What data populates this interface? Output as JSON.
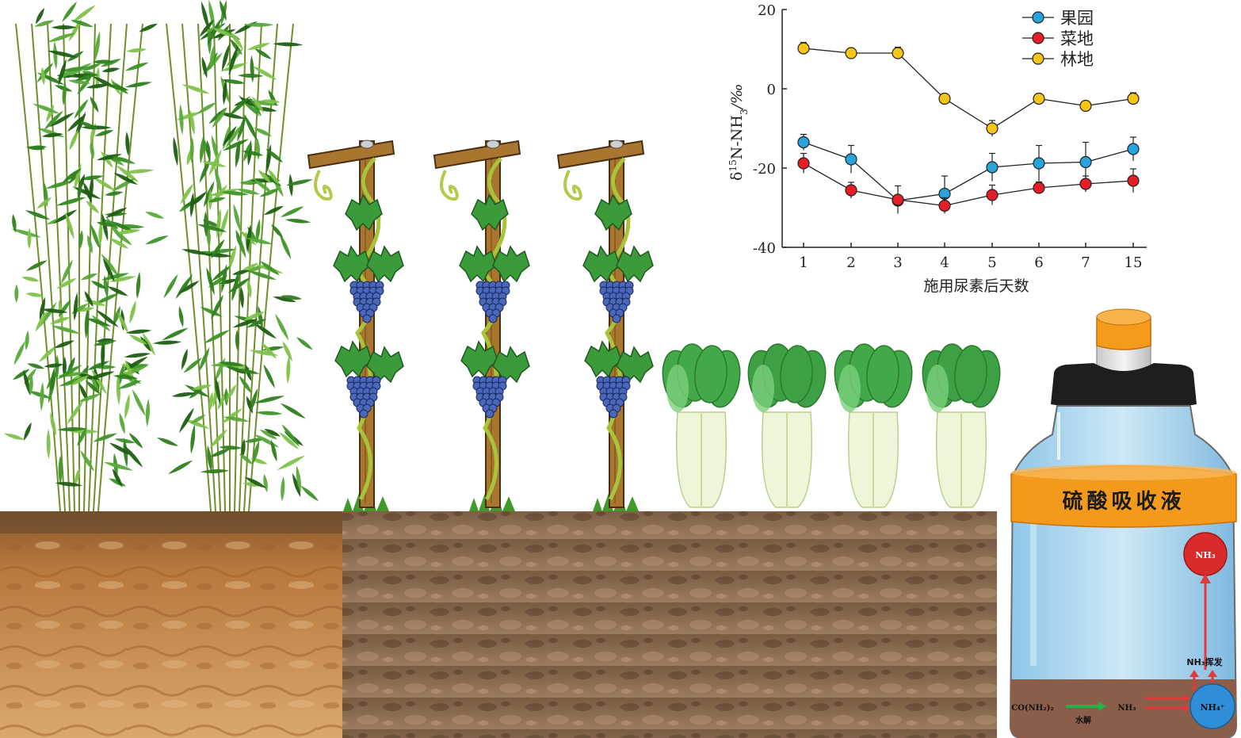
{
  "chart_data": {
    "type": "line",
    "x_categories": [
      "1",
      "2",
      "3",
      "4",
      "5",
      "6",
      "7",
      "15"
    ],
    "xlabel": "施用尿素后天数",
    "ylabel_parts": {
      "delta": "δ",
      "sup15": "15",
      "mid": "N-NH",
      "sub3": "3",
      "tail": "/‰"
    },
    "ylim": [
      -40,
      20
    ],
    "yticks": [
      "20",
      "0",
      "-20",
      "-40"
    ],
    "legend_position": "top-right",
    "series": [
      {
        "name": "果园",
        "color": "#29a3dc",
        "values": [
          -13.5,
          -17.8,
          -28.2,
          -26.5,
          -19.8,
          -18.8,
          -18.5,
          -15.2
        ],
        "errors": [
          2.0,
          3.5,
          1.0,
          4.5,
          3.5,
          4.5,
          5.0,
          3.0
        ]
      },
      {
        "name": "菜地",
        "color": "#e31e24",
        "values": [
          -18.8,
          -25.6,
          -28.0,
          -29.5,
          -26.8,
          -25.0,
          -24.0,
          -23.2
        ],
        "errors": [
          2.5,
          2.0,
          3.5,
          2.0,
          2.5,
          1.5,
          2.0,
          3.0
        ]
      },
      {
        "name": "林地",
        "color": "#f5c518",
        "values": [
          10.2,
          9.0,
          9.0,
          -2.5,
          -10.0,
          -2.5,
          -4.3,
          -2.5
        ],
        "errors": [
          1.5,
          1.0,
          1.5,
          0.5,
          2.0,
          0.5,
          0.5,
          1.5
        ]
      }
    ]
  },
  "bottle": {
    "absorb_label": "硫酸吸收液",
    "nh3_top": "NH₃",
    "volatilize_label": "NH₃挥发",
    "urea": "CO(NH₂)₂",
    "hydrolysis": "水解",
    "nh3_mid": "NH₃",
    "nh4": "NH₄⁺"
  }
}
